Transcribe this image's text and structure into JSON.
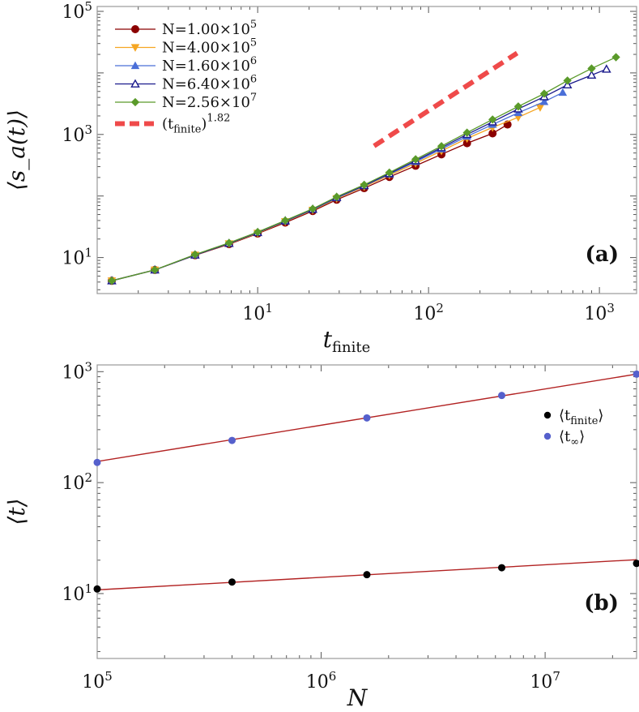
{
  "colors": {
    "n1": "#8b0000",
    "n2": "#f5a623",
    "n3": "#4a6fd8",
    "n4": "#1a1a8c",
    "n5": "#5a9a2a",
    "fit_a": "#ef4a4a",
    "tfin": "#000000",
    "tinf": "#5560cc",
    "fit_b": "#b22222"
  },
  "chart_data": [
    {
      "type": "line",
      "panel_label": "(a)",
      "xlabel": "t_finite",
      "ylabel": "⟨s_a(t)⟩",
      "xscale": "log",
      "yscale": "log",
      "xlim": [
        1.15,
        1650
      ],
      "ylim": [
        2.6,
        120000
      ],
      "xticks": [
        {
          "value": 10,
          "mant": "10",
          "exp": "1"
        },
        {
          "value": 100,
          "mant": "10",
          "exp": "2"
        },
        {
          "value": 1000,
          "mant": "10",
          "exp": "3"
        }
      ],
      "yticks": [
        {
          "value": 10,
          "mant": "10",
          "exp": "1"
        },
        {
          "value": 1000,
          "mant": "10",
          "exp": "3"
        },
        {
          "value": 100000,
          "mant": "10",
          "exp": "5"
        }
      ],
      "legend_position": "top-left",
      "series": [
        {
          "key": "n1",
          "name_prefix": "N=1.00×10",
          "name_exp": "5",
          "marker": "circle",
          "filled": true,
          "x": [
            1.4,
            2.5,
            4.3,
            6.8,
            10,
            14.5,
            21,
            29,
            42,
            59,
            84,
            119,
            168,
            237,
            290
          ],
          "y": [
            4.2,
            6.3,
            10.9,
            16.5,
            24.5,
            37,
            57,
            87,
            134,
            204,
            310,
            475,
            720,
            1040,
            1450
          ]
        },
        {
          "key": "n2",
          "name_prefix": "N=4.00×10",
          "name_exp": "5",
          "marker": "triangle-down",
          "filled": true,
          "x": [
            1.4,
            2.5,
            4.3,
            6.8,
            10,
            14.5,
            21,
            29,
            42,
            59,
            84,
            119,
            168,
            237,
            335,
            450
          ],
          "y": [
            4.2,
            6.3,
            11,
            16.8,
            25,
            38.5,
            59,
            91,
            142,
            218,
            340,
            540,
            860,
            1300,
            1900,
            2750
          ]
        },
        {
          "key": "n3",
          "name_prefix": "N=1.60×10",
          "name_exp": "6",
          "marker": "triangle-up",
          "filled": true,
          "x": [
            1.4,
            2.5,
            4.3,
            6.8,
            10,
            14.5,
            21,
            29,
            42,
            59,
            84,
            119,
            168,
            237,
            335,
            475,
            610
          ],
          "y": [
            4.2,
            6.3,
            11,
            17,
            25.5,
            39,
            60,
            93,
            146,
            226,
            360,
            580,
            930,
            1450,
            2250,
            3400,
            4800
          ]
        },
        {
          "key": "n4",
          "name_prefix": "N=6.40×10",
          "name_exp": "6",
          "marker": "triangle-up",
          "filled": false,
          "x": [
            1.4,
            2.5,
            4.3,
            6.8,
            10,
            14.5,
            21,
            29,
            42,
            59,
            84,
            119,
            168,
            237,
            335,
            475,
            650,
            900,
            1100
          ],
          "y": [
            4.2,
            6.3,
            11,
            17,
            25.5,
            39.5,
            61,
            95,
            148,
            232,
            375,
            610,
            1000,
            1600,
            2600,
            4100,
            6400,
            9200,
            11500
          ]
        },
        {
          "key": "n5",
          "name_prefix": "N=2.56×10",
          "name_exp": "7",
          "marker": "diamond",
          "filled": true,
          "x": [
            1.4,
            2.5,
            4.3,
            6.8,
            10,
            14.5,
            21,
            29,
            42,
            59,
            84,
            119,
            168,
            237,
            335,
            475,
            650,
            900,
            1250
          ],
          "y": [
            4.2,
            6.3,
            11.2,
            17.3,
            26,
            40,
            62,
            97,
            152,
            240,
            395,
            645,
            1070,
            1750,
            2850,
            4600,
            7500,
            11800,
            18000
          ]
        }
      ],
      "fit": {
        "key": "fit_a",
        "name_base": "(t",
        "name_sub": "finite",
        "name_tail": ")",
        "name_exp": "1.82",
        "x": [
          48,
          330
        ],
        "y": [
          650,
          21000
        ]
      }
    },
    {
      "type": "scatter",
      "panel_label": "(b)",
      "xlabel": "N",
      "ylabel": "⟨t⟩",
      "xscale": "log",
      "yscale": "log",
      "xlim": [
        100000,
        25600000
      ],
      "ylim": [
        2.6,
        1150
      ],
      "xticks": [
        {
          "value": 100000,
          "mant": "10",
          "exp": "5"
        },
        {
          "value": 1000000,
          "mant": "10",
          "exp": "6"
        },
        {
          "value": 10000000,
          "mant": "10",
          "exp": "7"
        }
      ],
      "yticks": [
        {
          "value": 10,
          "mant": "10",
          "exp": "1"
        },
        {
          "value": 100,
          "mant": "10",
          "exp": "2"
        },
        {
          "value": 1000,
          "mant": "10",
          "exp": "3"
        }
      ],
      "legend_position": "right",
      "series": [
        {
          "key": "tfin",
          "name_base": "⟨t",
          "name_sub": "finite",
          "name_tail": "⟩",
          "x": [
            100000,
            400000,
            1600000,
            6400000,
            25600000
          ],
          "y": [
            11,
            12.7,
            14.8,
            17.1,
            18.7
          ]
        },
        {
          "key": "tinf",
          "name_base": "⟨t",
          "name_sub": "∞",
          "name_tail": "⟩",
          "x": [
            100000,
            400000,
            1600000,
            6400000,
            25600000
          ],
          "y": [
            152,
            240,
            383,
            610,
            950
          ]
        }
      ],
      "fits": [
        {
          "key": "fit_b",
          "x": [
            100000,
            25600000
          ],
          "y": [
            10.8,
            20.2
          ]
        },
        {
          "key": "fit_b",
          "x": [
            100000,
            25600000
          ],
          "y": [
            155,
            950
          ]
        }
      ]
    }
  ]
}
